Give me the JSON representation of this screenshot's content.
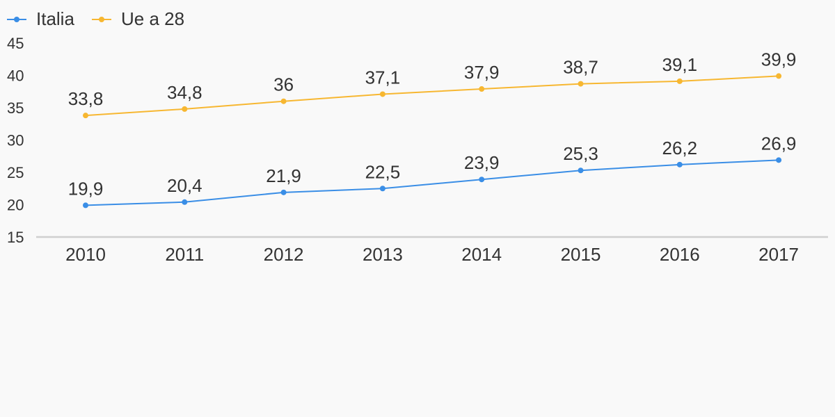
{
  "chart_data": {
    "type": "line",
    "categories": [
      "2010",
      "2011",
      "2012",
      "2013",
      "2014",
      "2015",
      "2016",
      "2017"
    ],
    "series": [
      {
        "name": "Italia",
        "color": "#3a8ee6",
        "values": [
          19.9,
          20.4,
          21.9,
          22.5,
          23.9,
          25.3,
          26.2,
          26.9
        ],
        "labels": [
          "19,9",
          "20,4",
          "21,9",
          "22,5",
          "23,9",
          "25,3",
          "26,2",
          "26,9"
        ]
      },
      {
        "name": "Ue a 28",
        "color": "#f7b731",
        "values": [
          33.8,
          34.8,
          36,
          37.1,
          37.9,
          38.7,
          39.1,
          39.9
        ],
        "labels": [
          "33,8",
          "34,8",
          "36",
          "37,1",
          "37,9",
          "38,7",
          "39,1",
          "39,9"
        ]
      }
    ],
    "yticks": [
      "15",
      "20",
      "25",
      "30",
      "35",
      "40",
      "45"
    ],
    "ylim": [
      15,
      45
    ],
    "grid": false,
    "legend_position": "top-left",
    "title": "",
    "xlabel": "",
    "ylabel": "",
    "axis_color": "#d0d0d0"
  }
}
